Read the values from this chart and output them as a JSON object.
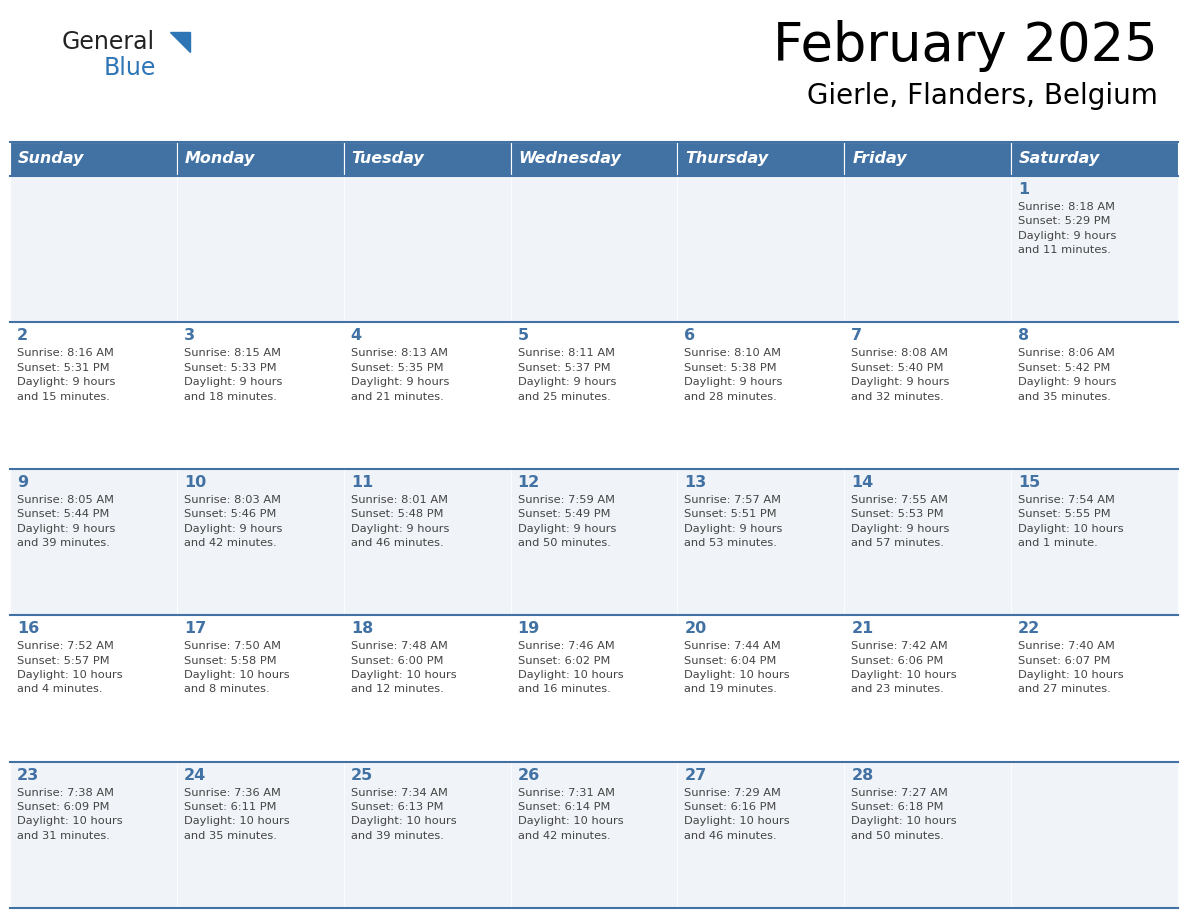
{
  "title": "February 2025",
  "subtitle": "Gierle, Flanders, Belgium",
  "days_of_week": [
    "Sunday",
    "Monday",
    "Tuesday",
    "Wednesday",
    "Thursday",
    "Friday",
    "Saturday"
  ],
  "header_bg": "#4272a4",
  "header_text": "#ffffff",
  "cell_bg_light": "#f0f4f8",
  "cell_bg_white": "#ffffff",
  "border_color": "#4272a4",
  "day_number_color": "#4272a4",
  "cell_text_color": "#444444",
  "logo_general_color": "#222222",
  "logo_blue_color": "#2e75b6",
  "weeks": [
    [
      {
        "day": 0,
        "text": ""
      },
      {
        "day": 0,
        "text": ""
      },
      {
        "day": 0,
        "text": ""
      },
      {
        "day": 0,
        "text": ""
      },
      {
        "day": 0,
        "text": ""
      },
      {
        "day": 0,
        "text": ""
      },
      {
        "day": 1,
        "text": "Sunrise: 8:18 AM\nSunset: 5:29 PM\nDaylight: 9 hours\nand 11 minutes."
      }
    ],
    [
      {
        "day": 2,
        "text": "Sunrise: 8:16 AM\nSunset: 5:31 PM\nDaylight: 9 hours\nand 15 minutes."
      },
      {
        "day": 3,
        "text": "Sunrise: 8:15 AM\nSunset: 5:33 PM\nDaylight: 9 hours\nand 18 minutes."
      },
      {
        "day": 4,
        "text": "Sunrise: 8:13 AM\nSunset: 5:35 PM\nDaylight: 9 hours\nand 21 minutes."
      },
      {
        "day": 5,
        "text": "Sunrise: 8:11 AM\nSunset: 5:37 PM\nDaylight: 9 hours\nand 25 minutes."
      },
      {
        "day": 6,
        "text": "Sunrise: 8:10 AM\nSunset: 5:38 PM\nDaylight: 9 hours\nand 28 minutes."
      },
      {
        "day": 7,
        "text": "Sunrise: 8:08 AM\nSunset: 5:40 PM\nDaylight: 9 hours\nand 32 minutes."
      },
      {
        "day": 8,
        "text": "Sunrise: 8:06 AM\nSunset: 5:42 PM\nDaylight: 9 hours\nand 35 minutes."
      }
    ],
    [
      {
        "day": 9,
        "text": "Sunrise: 8:05 AM\nSunset: 5:44 PM\nDaylight: 9 hours\nand 39 minutes."
      },
      {
        "day": 10,
        "text": "Sunrise: 8:03 AM\nSunset: 5:46 PM\nDaylight: 9 hours\nand 42 minutes."
      },
      {
        "day": 11,
        "text": "Sunrise: 8:01 AM\nSunset: 5:48 PM\nDaylight: 9 hours\nand 46 minutes."
      },
      {
        "day": 12,
        "text": "Sunrise: 7:59 AM\nSunset: 5:49 PM\nDaylight: 9 hours\nand 50 minutes."
      },
      {
        "day": 13,
        "text": "Sunrise: 7:57 AM\nSunset: 5:51 PM\nDaylight: 9 hours\nand 53 minutes."
      },
      {
        "day": 14,
        "text": "Sunrise: 7:55 AM\nSunset: 5:53 PM\nDaylight: 9 hours\nand 57 minutes."
      },
      {
        "day": 15,
        "text": "Sunrise: 7:54 AM\nSunset: 5:55 PM\nDaylight: 10 hours\nand 1 minute."
      }
    ],
    [
      {
        "day": 16,
        "text": "Sunrise: 7:52 AM\nSunset: 5:57 PM\nDaylight: 10 hours\nand 4 minutes."
      },
      {
        "day": 17,
        "text": "Sunrise: 7:50 AM\nSunset: 5:58 PM\nDaylight: 10 hours\nand 8 minutes."
      },
      {
        "day": 18,
        "text": "Sunrise: 7:48 AM\nSunset: 6:00 PM\nDaylight: 10 hours\nand 12 minutes."
      },
      {
        "day": 19,
        "text": "Sunrise: 7:46 AM\nSunset: 6:02 PM\nDaylight: 10 hours\nand 16 minutes."
      },
      {
        "day": 20,
        "text": "Sunrise: 7:44 AM\nSunset: 6:04 PM\nDaylight: 10 hours\nand 19 minutes."
      },
      {
        "day": 21,
        "text": "Sunrise: 7:42 AM\nSunset: 6:06 PM\nDaylight: 10 hours\nand 23 minutes."
      },
      {
        "day": 22,
        "text": "Sunrise: 7:40 AM\nSunset: 6:07 PM\nDaylight: 10 hours\nand 27 minutes."
      }
    ],
    [
      {
        "day": 23,
        "text": "Sunrise: 7:38 AM\nSunset: 6:09 PM\nDaylight: 10 hours\nand 31 minutes."
      },
      {
        "day": 24,
        "text": "Sunrise: 7:36 AM\nSunset: 6:11 PM\nDaylight: 10 hours\nand 35 minutes."
      },
      {
        "day": 25,
        "text": "Sunrise: 7:34 AM\nSunset: 6:13 PM\nDaylight: 10 hours\nand 39 minutes."
      },
      {
        "day": 26,
        "text": "Sunrise: 7:31 AM\nSunset: 6:14 PM\nDaylight: 10 hours\nand 42 minutes."
      },
      {
        "day": 27,
        "text": "Sunrise: 7:29 AM\nSunset: 6:16 PM\nDaylight: 10 hours\nand 46 minutes."
      },
      {
        "day": 28,
        "text": "Sunrise: 7:27 AM\nSunset: 6:18 PM\nDaylight: 10 hours\nand 50 minutes."
      },
      {
        "day": 0,
        "text": ""
      }
    ]
  ]
}
